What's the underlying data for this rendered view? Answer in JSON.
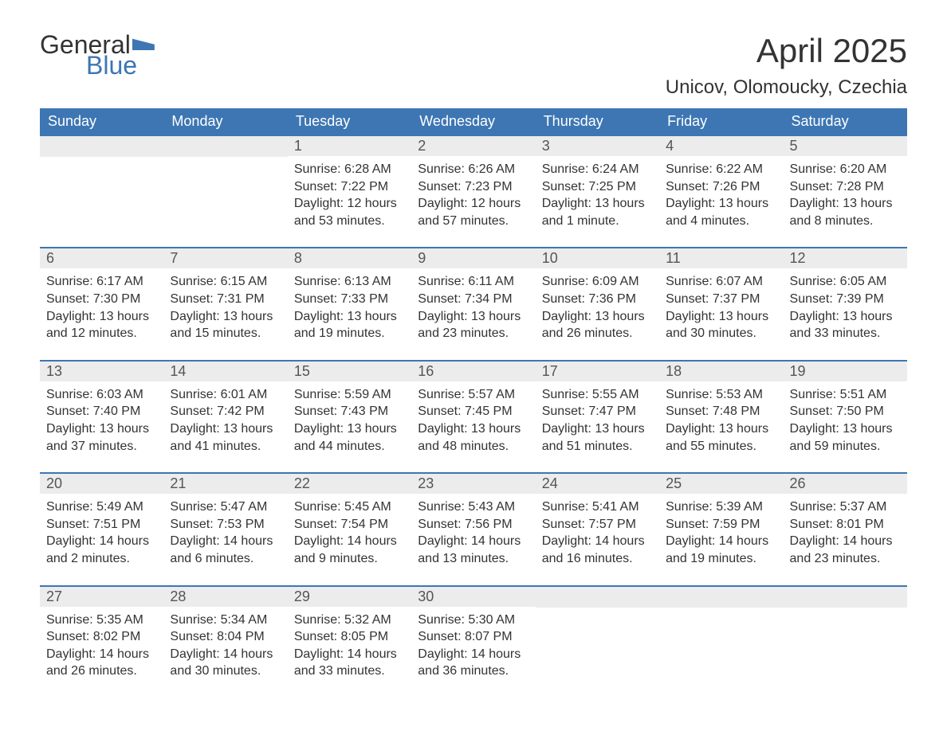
{
  "logo": {
    "word1": "General",
    "word2": "Blue"
  },
  "title": "April 2025",
  "subtitle": "Unicov, Olomoucky, Czechia",
  "colors": {
    "header_bg": "#3d76b3",
    "header_text": "#ffffff",
    "daynum_bg": "#ececec",
    "text": "#333333",
    "row_border": "#3d76b3",
    "page_bg": "#ffffff"
  },
  "typography": {
    "title_fontsize": 42,
    "subtitle_fontsize": 24,
    "dayhdr_fontsize": 18,
    "daynum_fontsize": 18,
    "body_fontsize": 16,
    "font_family": "Segoe UI"
  },
  "day_headers": [
    "Sunday",
    "Monday",
    "Tuesday",
    "Wednesday",
    "Thursday",
    "Friday",
    "Saturday"
  ],
  "weeks": [
    [
      null,
      null,
      {
        "n": "1",
        "sunrise": "6:28 AM",
        "sunset": "7:22 PM",
        "daylight": "12 hours and 53 minutes."
      },
      {
        "n": "2",
        "sunrise": "6:26 AM",
        "sunset": "7:23 PM",
        "daylight": "12 hours and 57 minutes."
      },
      {
        "n": "3",
        "sunrise": "6:24 AM",
        "sunset": "7:25 PM",
        "daylight": "13 hours and 1 minute."
      },
      {
        "n": "4",
        "sunrise": "6:22 AM",
        "sunset": "7:26 PM",
        "daylight": "13 hours and 4 minutes."
      },
      {
        "n": "5",
        "sunrise": "6:20 AM",
        "sunset": "7:28 PM",
        "daylight": "13 hours and 8 minutes."
      }
    ],
    [
      {
        "n": "6",
        "sunrise": "6:17 AM",
        "sunset": "7:30 PM",
        "daylight": "13 hours and 12 minutes."
      },
      {
        "n": "7",
        "sunrise": "6:15 AM",
        "sunset": "7:31 PM",
        "daylight": "13 hours and 15 minutes."
      },
      {
        "n": "8",
        "sunrise": "6:13 AM",
        "sunset": "7:33 PM",
        "daylight": "13 hours and 19 minutes."
      },
      {
        "n": "9",
        "sunrise": "6:11 AM",
        "sunset": "7:34 PM",
        "daylight": "13 hours and 23 minutes."
      },
      {
        "n": "10",
        "sunrise": "6:09 AM",
        "sunset": "7:36 PM",
        "daylight": "13 hours and 26 minutes."
      },
      {
        "n": "11",
        "sunrise": "6:07 AM",
        "sunset": "7:37 PM",
        "daylight": "13 hours and 30 minutes."
      },
      {
        "n": "12",
        "sunrise": "6:05 AM",
        "sunset": "7:39 PM",
        "daylight": "13 hours and 33 minutes."
      }
    ],
    [
      {
        "n": "13",
        "sunrise": "6:03 AM",
        "sunset": "7:40 PM",
        "daylight": "13 hours and 37 minutes."
      },
      {
        "n": "14",
        "sunrise": "6:01 AM",
        "sunset": "7:42 PM",
        "daylight": "13 hours and 41 minutes."
      },
      {
        "n": "15",
        "sunrise": "5:59 AM",
        "sunset": "7:43 PM",
        "daylight": "13 hours and 44 minutes."
      },
      {
        "n": "16",
        "sunrise": "5:57 AM",
        "sunset": "7:45 PM",
        "daylight": "13 hours and 48 minutes."
      },
      {
        "n": "17",
        "sunrise": "5:55 AM",
        "sunset": "7:47 PM",
        "daylight": "13 hours and 51 minutes."
      },
      {
        "n": "18",
        "sunrise": "5:53 AM",
        "sunset": "7:48 PM",
        "daylight": "13 hours and 55 minutes."
      },
      {
        "n": "19",
        "sunrise": "5:51 AM",
        "sunset": "7:50 PM",
        "daylight": "13 hours and 59 minutes."
      }
    ],
    [
      {
        "n": "20",
        "sunrise": "5:49 AM",
        "sunset": "7:51 PM",
        "daylight": "14 hours and 2 minutes."
      },
      {
        "n": "21",
        "sunrise": "5:47 AM",
        "sunset": "7:53 PM",
        "daylight": "14 hours and 6 minutes."
      },
      {
        "n": "22",
        "sunrise": "5:45 AM",
        "sunset": "7:54 PM",
        "daylight": "14 hours and 9 minutes."
      },
      {
        "n": "23",
        "sunrise": "5:43 AM",
        "sunset": "7:56 PM",
        "daylight": "14 hours and 13 minutes."
      },
      {
        "n": "24",
        "sunrise": "5:41 AM",
        "sunset": "7:57 PM",
        "daylight": "14 hours and 16 minutes."
      },
      {
        "n": "25",
        "sunrise": "5:39 AM",
        "sunset": "7:59 PM",
        "daylight": "14 hours and 19 minutes."
      },
      {
        "n": "26",
        "sunrise": "5:37 AM",
        "sunset": "8:01 PM",
        "daylight": "14 hours and 23 minutes."
      }
    ],
    [
      {
        "n": "27",
        "sunrise": "5:35 AM",
        "sunset": "8:02 PM",
        "daylight": "14 hours and 26 minutes."
      },
      {
        "n": "28",
        "sunrise": "5:34 AM",
        "sunset": "8:04 PM",
        "daylight": "14 hours and 30 minutes."
      },
      {
        "n": "29",
        "sunrise": "5:32 AM",
        "sunset": "8:05 PM",
        "daylight": "14 hours and 33 minutes."
      },
      {
        "n": "30",
        "sunrise": "5:30 AM",
        "sunset": "8:07 PM",
        "daylight": "14 hours and 36 minutes."
      },
      null,
      null,
      null
    ]
  ],
  "labels": {
    "sunrise": "Sunrise: ",
    "sunset": "Sunset: ",
    "daylight": "Daylight: "
  }
}
